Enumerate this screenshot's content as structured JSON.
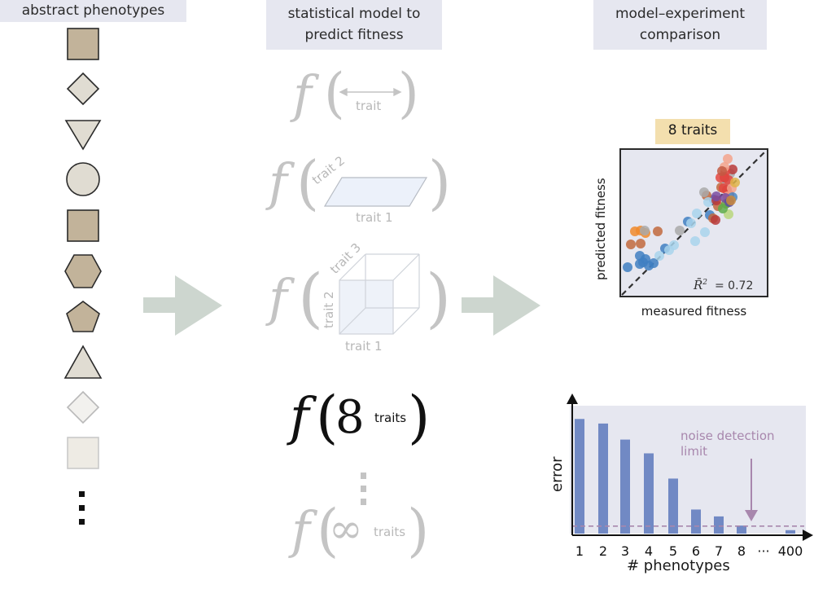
{
  "columns": {
    "phenotypes_title": "abstract phenotypes",
    "model_title_line1": "statistical model to",
    "model_title_line2": "predict fitness",
    "comparison_title_line1": "model–experiment",
    "comparison_title_line2": "comparison"
  },
  "models": {
    "f_symbol": "f",
    "trait_label": "trait",
    "trait1_label": "trait 1",
    "trait2_label": "trait 2",
    "trait3_label": "trait 3",
    "eight": "8",
    "traits_label": "traits",
    "infinity": "∞"
  },
  "scatter": {
    "badge": "8 traits",
    "xlabel": "measured fitness",
    "ylabel": "predicted fitness",
    "r2_value": "= 0.72"
  },
  "colors": {
    "shape_fill": "#c2b39a",
    "shape_light": "#e0dcd2",
    "shape_faint": "#eeebe4",
    "arrow": "#cdd6cf",
    "panel_bg": "#e6e7f0",
    "badge_bg": "#f3dfae",
    "bar": "#7189c4",
    "noise": "#a887ad"
  },
  "chart_data": {
    "type": "bar",
    "xlabel": "# phenotypes",
    "ylabel": "error",
    "categories": [
      "1",
      "2",
      "3",
      "4",
      "5",
      "6",
      "7",
      "8",
      "···",
      "400"
    ],
    "values": [
      1.0,
      0.96,
      0.82,
      0.7,
      0.48,
      0.21,
      0.15,
      0.07,
      null,
      0.03
    ],
    "ylim": [
      0,
      1.08
    ],
    "noise_level": 0.065,
    "annotation_line1": "noise detection",
    "annotation_line2": "limit"
  }
}
